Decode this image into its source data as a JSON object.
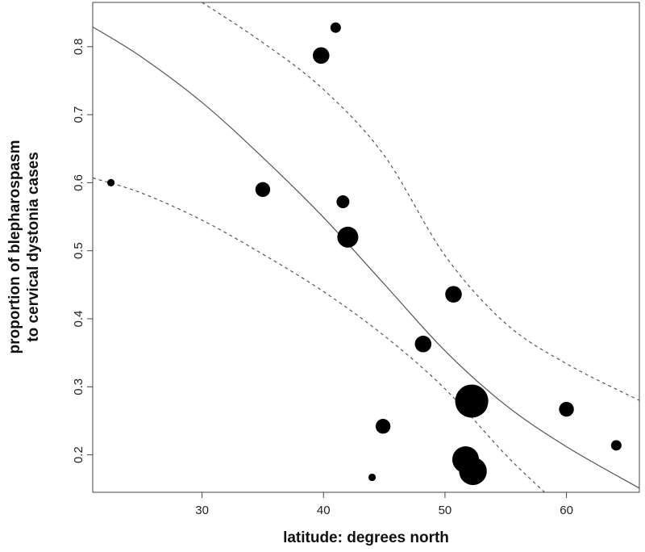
{
  "chart_data": {
    "type": "scatter",
    "title": "",
    "xlabel": "latitude: degrees north",
    "ylabel_lines": [
      "proportion of blepharospasm",
      "to cervical dystonia cases"
    ],
    "xlim": [
      21,
      66
    ],
    "ylim": [
      0.145,
      0.865
    ],
    "xticks": [
      30,
      40,
      50,
      60
    ],
    "yticks": [
      0.2,
      0.3,
      0.4,
      0.5,
      0.6,
      0.7,
      0.8
    ],
    "grid": false,
    "legend": "none",
    "points": [
      {
        "x": 22.5,
        "y": 0.6,
        "weight": 1
      },
      {
        "x": 35.0,
        "y": 0.59,
        "weight": 4
      },
      {
        "x": 39.8,
        "y": 0.787,
        "weight": 5
      },
      {
        "x": 41.0,
        "y": 0.828,
        "weight": 2
      },
      {
        "x": 41.6,
        "y": 0.572,
        "weight": 3
      },
      {
        "x": 42.0,
        "y": 0.52,
        "weight": 8
      },
      {
        "x": 44.0,
        "y": 0.167,
        "weight": 1
      },
      {
        "x": 44.9,
        "y": 0.242,
        "weight": 4
      },
      {
        "x": 48.2,
        "y": 0.363,
        "weight": 5
      },
      {
        "x": 50.7,
        "y": 0.436,
        "weight": 5
      },
      {
        "x": 51.7,
        "y": 0.193,
        "weight": 13
      },
      {
        "x": 52.3,
        "y": 0.176,
        "weight": 14
      },
      {
        "x": 52.2,
        "y": 0.279,
        "weight": 20
      },
      {
        "x": 60.0,
        "y": 0.267,
        "weight": 4
      },
      {
        "x": 64.1,
        "y": 0.214,
        "weight": 2
      }
    ],
    "lines": [
      {
        "role": "fit",
        "style": "solid",
        "color": "#555555",
        "x": [
          21,
          25,
          30,
          35,
          40,
          45,
          50,
          55,
          60,
          66
        ],
        "y": [
          0.829,
          0.785,
          0.718,
          0.637,
          0.549,
          0.451,
          0.353,
          0.273,
          0.212,
          0.151
        ]
      },
      {
        "role": "upper",
        "style": "dashed",
        "color": "#555555",
        "x": [
          30,
          35,
          40,
          45,
          50,
          55,
          60,
          66
        ],
        "y": [
          0.865,
          0.806,
          0.737,
          0.64,
          0.493,
          0.393,
          0.334,
          0.28
        ]
      },
      {
        "role": "lower",
        "style": "dashed",
        "color": "#555555",
        "x": [
          21,
          25,
          30,
          35,
          40,
          45,
          50,
          55,
          58.2
        ],
        "y": [
          0.607,
          0.585,
          0.545,
          0.495,
          0.44,
          0.375,
          0.297,
          0.2,
          0.145
        ]
      }
    ],
    "colors": {
      "points": "#000000",
      "curves": "#555555",
      "axis": "#444444"
    }
  }
}
